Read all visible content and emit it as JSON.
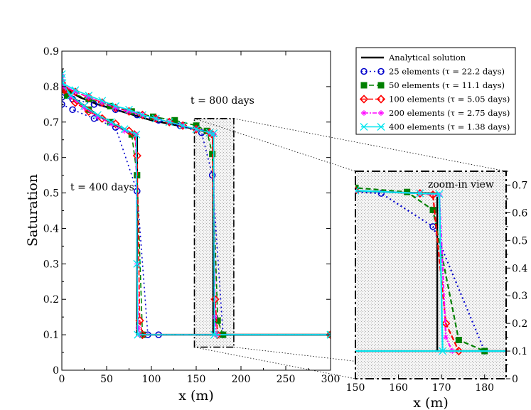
{
  "chart_data": [
    {
      "type": "line",
      "panel": "main",
      "xlabel": "x (m)",
      "ylabel": "Saturation",
      "xlim": [
        0,
        300
      ],
      "ylim": [
        0,
        0.9
      ],
      "xticks": [
        0,
        50,
        100,
        150,
        200,
        250,
        300
      ],
      "yticks": [
        0,
        0.1,
        0.2,
        0.3,
        0.4,
        0.5,
        0.6,
        0.7,
        0.8,
        0.9
      ],
      "annotations": [
        "t = 800 days",
        "t = 400 days"
      ],
      "legend_position": "top-right",
      "series": [
        {
          "name": "Analytical solution",
          "color": "#000000",
          "dash": "",
          "marker": "none",
          "curves": [
            {
              "x": [
                0,
                0,
                2,
                10,
                20,
                40,
                60,
                80,
                84,
                84,
                300
              ],
              "y": [
                0.85,
                0.81,
                0.8,
                0.775,
                0.755,
                0.72,
                0.69,
                0.665,
                0.66,
                0.1,
                0.1
              ]
            },
            {
              "x": [
                0,
                2,
                10,
                20,
                40,
                60,
                80,
                100,
                120,
                140,
                160,
                169,
                169,
                300
              ],
              "y": [
                0.81,
                0.8,
                0.785,
                0.77,
                0.75,
                0.735,
                0.72,
                0.705,
                0.695,
                0.685,
                0.673,
                0.67,
                0.1,
                0.1
              ]
            }
          ]
        },
        {
          "name": "25 elements (τ = 22.2 days)",
          "color": "#0000cc",
          "dash": "2,4",
          "marker": "circle",
          "curves": [
            {
              "x": [
                0,
                12,
                36,
                60,
                84,
                96,
                108,
                300
              ],
              "y": [
                0.75,
                0.735,
                0.71,
                0.685,
                0.505,
                0.1,
                0.1,
                0.1
              ]
            },
            {
              "x": [
                0,
                12,
                36,
                60,
                84,
                108,
                132,
                156,
                168,
                180,
                300
              ],
              "y": [
                0.77,
                0.765,
                0.75,
                0.735,
                0.72,
                0.705,
                0.69,
                0.67,
                0.55,
                0.1,
                0.1
              ]
            }
          ]
        },
        {
          "name": "50 elements (τ = 11.1 days)",
          "color": "#008000",
          "dash": "7,4",
          "marker": "square",
          "curves": [
            {
              "x": [
                0,
                6,
                30,
                54,
                78,
                84,
                90,
                300
              ],
              "y": [
                0.8,
                0.775,
                0.735,
                0.7,
                0.665,
                0.55,
                0.1,
                0.1
              ]
            },
            {
              "x": [
                0,
                6,
                30,
                54,
                78,
                102,
                126,
                150,
                162,
                168,
                174,
                180,
                300
              ],
              "y": [
                0.79,
                0.785,
                0.765,
                0.745,
                0.73,
                0.715,
                0.705,
                0.69,
                0.675,
                0.61,
                0.14,
                0.1,
                0.1
              ]
            }
          ]
        },
        {
          "name": "100 elements (τ = 5.05 days)",
          "color": "#ff0000",
          "dash": "7,3",
          "marker": "diamond",
          "curves": [
            {
              "x": [
                0,
                3,
                15,
                30,
                45,
                60,
                75,
                81,
                84,
                87,
                90,
                300
              ],
              "y": [
                0.81,
                0.79,
                0.755,
                0.73,
                0.71,
                0.695,
                0.675,
                0.665,
                0.605,
                0.14,
                0.1,
                0.1
              ]
            },
            {
              "x": [
                0,
                3,
                15,
                30,
                45,
                60,
                75,
                90,
                105,
                120,
                135,
                150,
                165,
                168,
                171,
                174,
                300
              ],
              "y": [
                0.8,
                0.795,
                0.785,
                0.77,
                0.755,
                0.74,
                0.73,
                0.72,
                0.71,
                0.7,
                0.69,
                0.68,
                0.67,
                0.665,
                0.2,
                0.1,
                0.1
              ]
            }
          ]
        },
        {
          "name": "200 elements (τ = 2.75 days)",
          "color": "#ff00ff",
          "dash": "2,2,6,2",
          "marker": "star",
          "curves": [
            {
              "x": [
                0,
                1.5,
                10,
                25,
                40,
                55,
                70,
                82.5,
                84,
                85.5,
                87,
                300
              ],
              "y": [
                0.83,
                0.8,
                0.77,
                0.74,
                0.715,
                0.695,
                0.675,
                0.665,
                0.3,
                0.12,
                0.1,
                0.1
              ]
            },
            {
              "x": [
                0,
                1.5,
                15,
                30,
                45,
                60,
                75,
                90,
                105,
                120,
                135,
                150,
                165,
                169.5,
                171,
                172.5,
                300
              ],
              "y": [
                0.82,
                0.805,
                0.785,
                0.77,
                0.755,
                0.74,
                0.73,
                0.72,
                0.71,
                0.7,
                0.69,
                0.68,
                0.67,
                0.665,
                0.15,
                0.1,
                0.1
              ]
            }
          ]
        },
        {
          "name": "400 elements (τ = 1.38 days)",
          "color": "#00e5ee",
          "dash": "",
          "marker": "x",
          "curves": [
            {
              "x": [
                0,
                0.75,
                10,
                25,
                40,
                55,
                70,
                83.25,
                84,
                84.75,
                300
              ],
              "y": [
                0.835,
                0.81,
                0.775,
                0.745,
                0.72,
                0.7,
                0.68,
                0.665,
                0.3,
                0.1,
                0.1
              ]
            },
            {
              "x": [
                0,
                0.75,
                15,
                30,
                45,
                60,
                75,
                90,
                105,
                120,
                135,
                150,
                165,
                169.5,
                170.25,
                300
              ],
              "y": [
                0.825,
                0.81,
                0.79,
                0.775,
                0.76,
                0.745,
                0.735,
                0.72,
                0.71,
                0.7,
                0.69,
                0.68,
                0.67,
                0.668,
                0.1,
                0.1
              ]
            }
          ]
        }
      ],
      "zoom_region": {
        "x": [
          148,
          192
        ],
        "y": [
          0.065,
          0.71
        ]
      }
    },
    {
      "type": "line",
      "panel": "inset",
      "title": "zoom-in view",
      "xlabel": "x (m)",
      "xlim": [
        150,
        185
      ],
      "ylim": [
        0,
        0.75
      ],
      "xticks": [
        150,
        160,
        170,
        180
      ],
      "yticks": [
        0,
        0.1,
        0.2,
        0.3,
        0.4,
        0.5,
        0.6,
        0.7
      ],
      "ytick_side": "right"
    }
  ]
}
